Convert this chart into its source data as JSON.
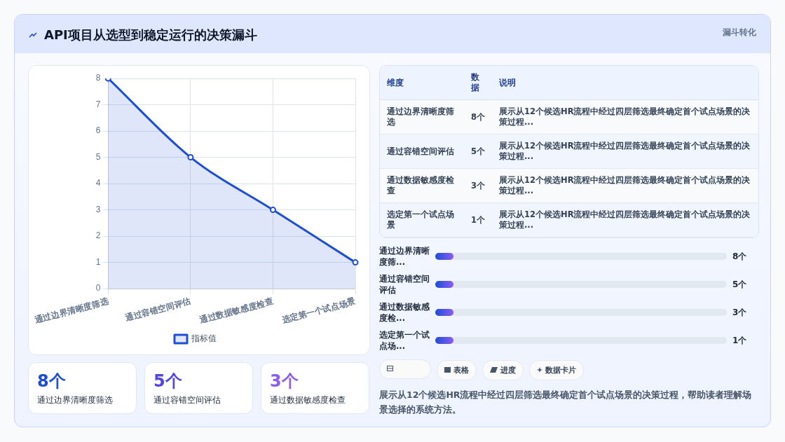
{
  "chart_data": [
    {
      "type": "other",
      "title": "API项目从选型到稳定运行的决策漏斗",
      "subtitle": "漏斗转化"
    },
    {
      "type": "area",
      "categories": [
        "通过边界清晰度筛选",
        "通过容错空间评估",
        "通过数据敏感度检查",
        "选定第一个试点场景"
      ],
      "series": [
        {
          "name": "指标值",
          "color": "#1d4ed8",
          "values": [
            8,
            5,
            3,
            1
          ]
        }
      ],
      "ylim": [
        0,
        8
      ],
      "yticks": [
        0,
        1,
        2,
        3,
        4,
        5,
        6,
        7,
        8
      ],
      "grid": true,
      "legend": "bottom",
      "marker": "circle"
    },
    {
      "type": "other",
      "categories": [
        "通过边界清晰度筛选",
        "通过容错空间评估",
        "通过数据敏感度检查",
        "选定第一个试点场景"
      ],
      "value_labels": [
        "8个",
        "5个",
        "3个",
        "1个"
      ],
      "annotations": [
        "维度",
        "数据",
        "说明",
        "展示从12个候选HR流程中经过四层筛选最终确定首个试点场景的决策过程...",
        "展示从12个候选HR流程中经过四层筛选最终确定首个试点场景的决策过程...",
        "展示从12个候选HR流程中经过四层筛选最终确定首个试点场景的决策过程...",
        "展示从12个候选HR流程中经过四层筛选最终确定首个试点场景的决策过程..."
      ]
    },
    {
      "type": "other",
      "categories": [
        "通过边界清晰度筛...",
        "通过容错空间评估",
        "通过数据敏感度检...",
        "选定第一个试点场..."
      ],
      "value_labels": [
        "8个",
        "5个",
        "3个",
        "1个"
      ]
    },
    {
      "type": "other",
      "categories": [
        "通过边界清晰度筛选",
        "通过容错空间评估",
        "通过数据敏感度检查"
      ],
      "value_labels": [
        "8个",
        "5个",
        "3个"
      ]
    },
    {
      "type": "other",
      "annotations": [
        "表格",
        "进度",
        "数据卡片",
        "展示从12个候选HR流程中经过四层筛选最终确定首个试点场景的决策过程，帮助读者理解场景选择的系统方法。"
      ]
    }
  ]
}
